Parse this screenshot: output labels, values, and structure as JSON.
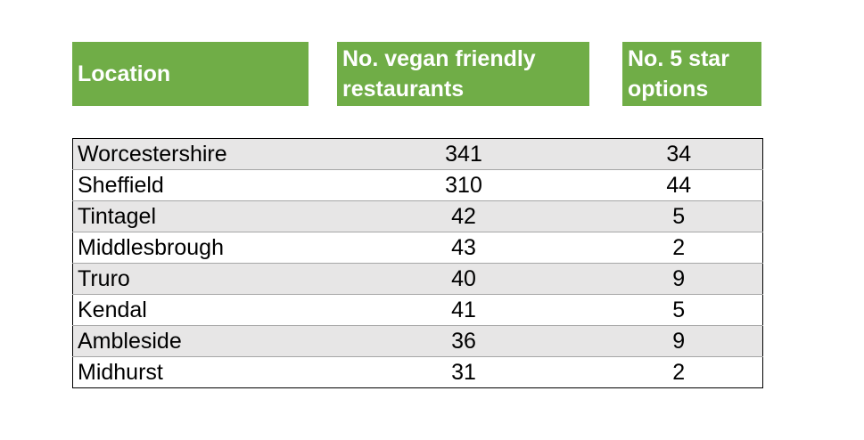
{
  "chart_data": {
    "type": "table",
    "columns": [
      "Location",
      "No. vegan friendly restaurants",
      "No. 5 star options"
    ],
    "header": {
      "location": "Location",
      "vegan_line1": "No. vegan friendly",
      "vegan_line2": "restaurants",
      "stars_line1": "No. 5 star",
      "stars_line2": "options"
    },
    "rows": [
      {
        "location": "Worcestershire",
        "vegan": "341",
        "stars": "34"
      },
      {
        "location": "Sheffield",
        "vegan": "310",
        "stars": "44"
      },
      {
        "location": "Tintagel",
        "vegan": "42",
        "stars": "5"
      },
      {
        "location": "Middlesbrough",
        "vegan": "43",
        "stars": "2"
      },
      {
        "location": "Truro",
        "vegan": "40",
        "stars": "9"
      },
      {
        "location": "Kendal",
        "vegan": "41",
        "stars": "5"
      },
      {
        "location": "Ambleside",
        "vegan": "36",
        "stars": "9"
      },
      {
        "location": "Midhurst",
        "vegan": "31",
        "stars": "2"
      }
    ]
  },
  "colors": {
    "header_bg": "#70ad47",
    "header_text": "#ffffff",
    "row_shade": "#e7e6e6"
  }
}
